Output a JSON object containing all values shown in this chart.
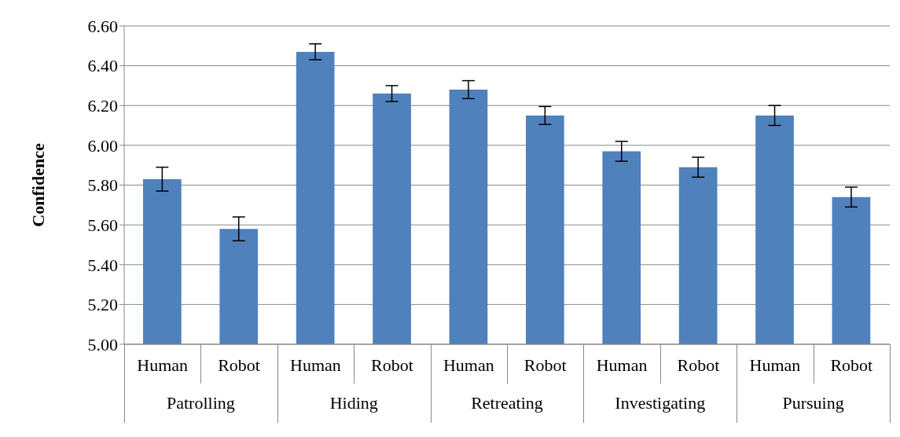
{
  "chart_data": {
    "type": "bar",
    "ylabel": "Confidence",
    "categories": [
      "Human",
      "Robot",
      "Human",
      "Robot",
      "Human",
      "Robot",
      "Human",
      "Robot",
      "Human",
      "Robot"
    ],
    "annotations": [
      "Patrolling",
      "Hiding",
      "Retreating",
      "Investigating",
      "Pursuing"
    ],
    "values": [
      5.83,
      5.58,
      6.47,
      6.26,
      6.28,
      6.15,
      5.97,
      5.89,
      6.15,
      5.74
    ],
    "errors": [
      0.06,
      0.06,
      0.04,
      0.04,
      0.045,
      0.045,
      0.05,
      0.05,
      0.05,
      0.05
    ],
    "color": "#4f81bd",
    "ylim": [
      5,
      6.6
    ],
    "yticks": [
      {
        "value": 5,
        "label": "5.00"
      },
      {
        "value": 5.2,
        "label": "5.20"
      },
      {
        "value": 5.4,
        "label": "5.40"
      },
      {
        "value": 5.6,
        "label": "5.60"
      },
      {
        "value": 5.8,
        "label": "5.80"
      },
      {
        "value": 6,
        "label": "6.00"
      },
      {
        "value": 6.2,
        "label": "6.20"
      },
      {
        "value": 6.4,
        "label": "6.40"
      },
      {
        "value": 6.6,
        "label": "6.60"
      }
    ],
    "grid": "y"
  }
}
